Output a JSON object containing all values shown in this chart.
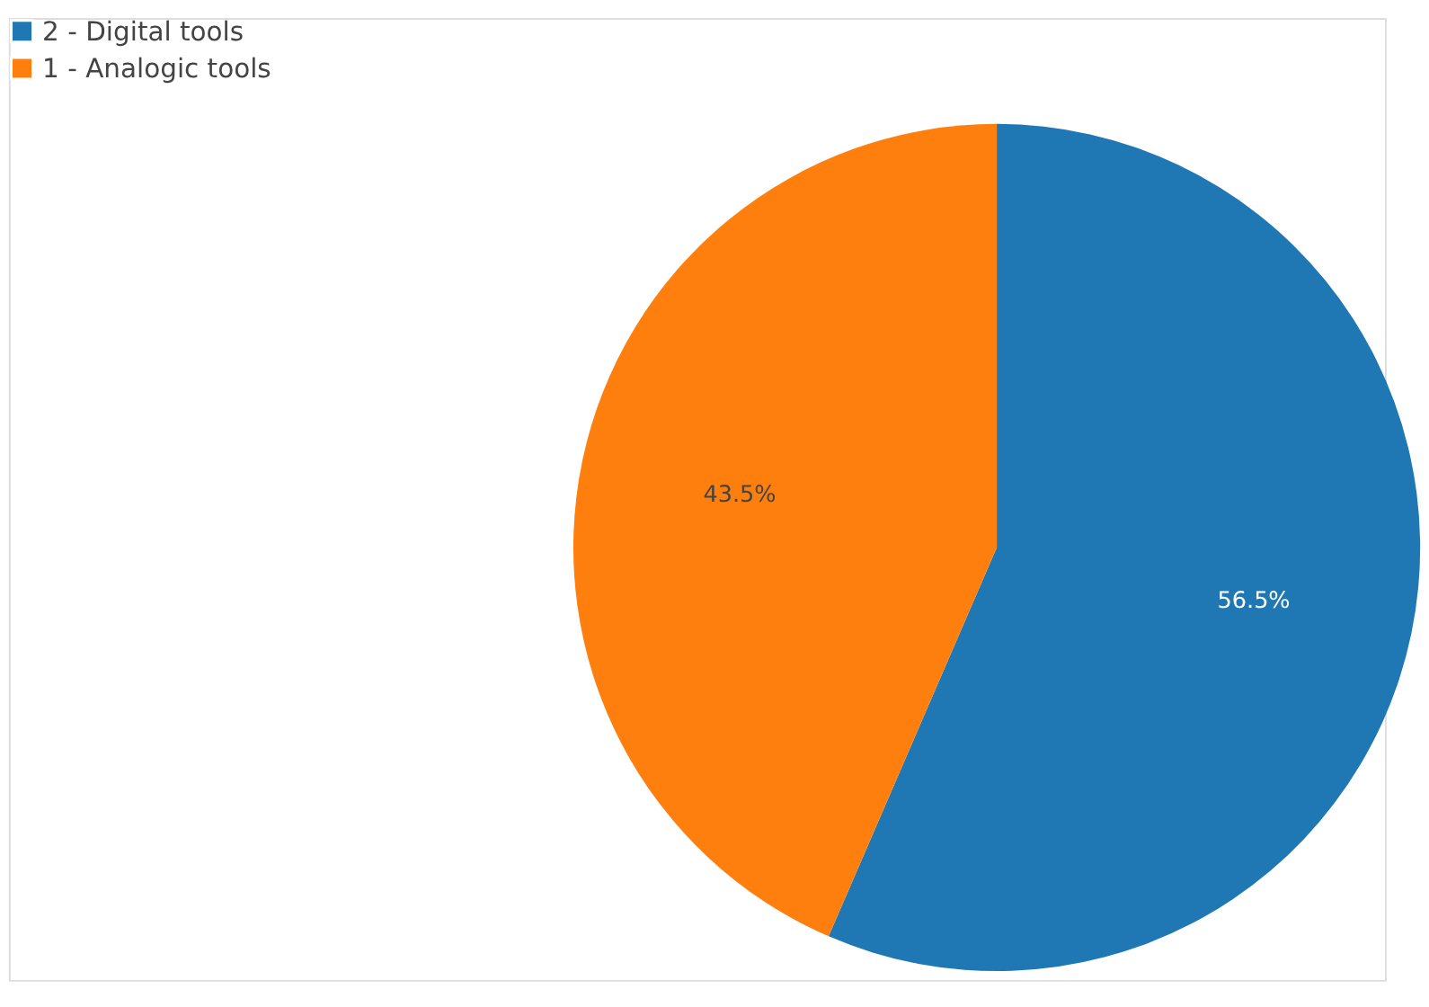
{
  "chart_data": {
    "type": "pie",
    "categories": [
      "2 - Digital tools",
      "1 - Analogic tools"
    ],
    "values": [
      56.5,
      43.5
    ],
    "colors": [
      "#1f77b4",
      "#ff7f0e"
    ],
    "value_labels": [
      "56.5%",
      "43.5%"
    ],
    "legend": "top left"
  }
}
